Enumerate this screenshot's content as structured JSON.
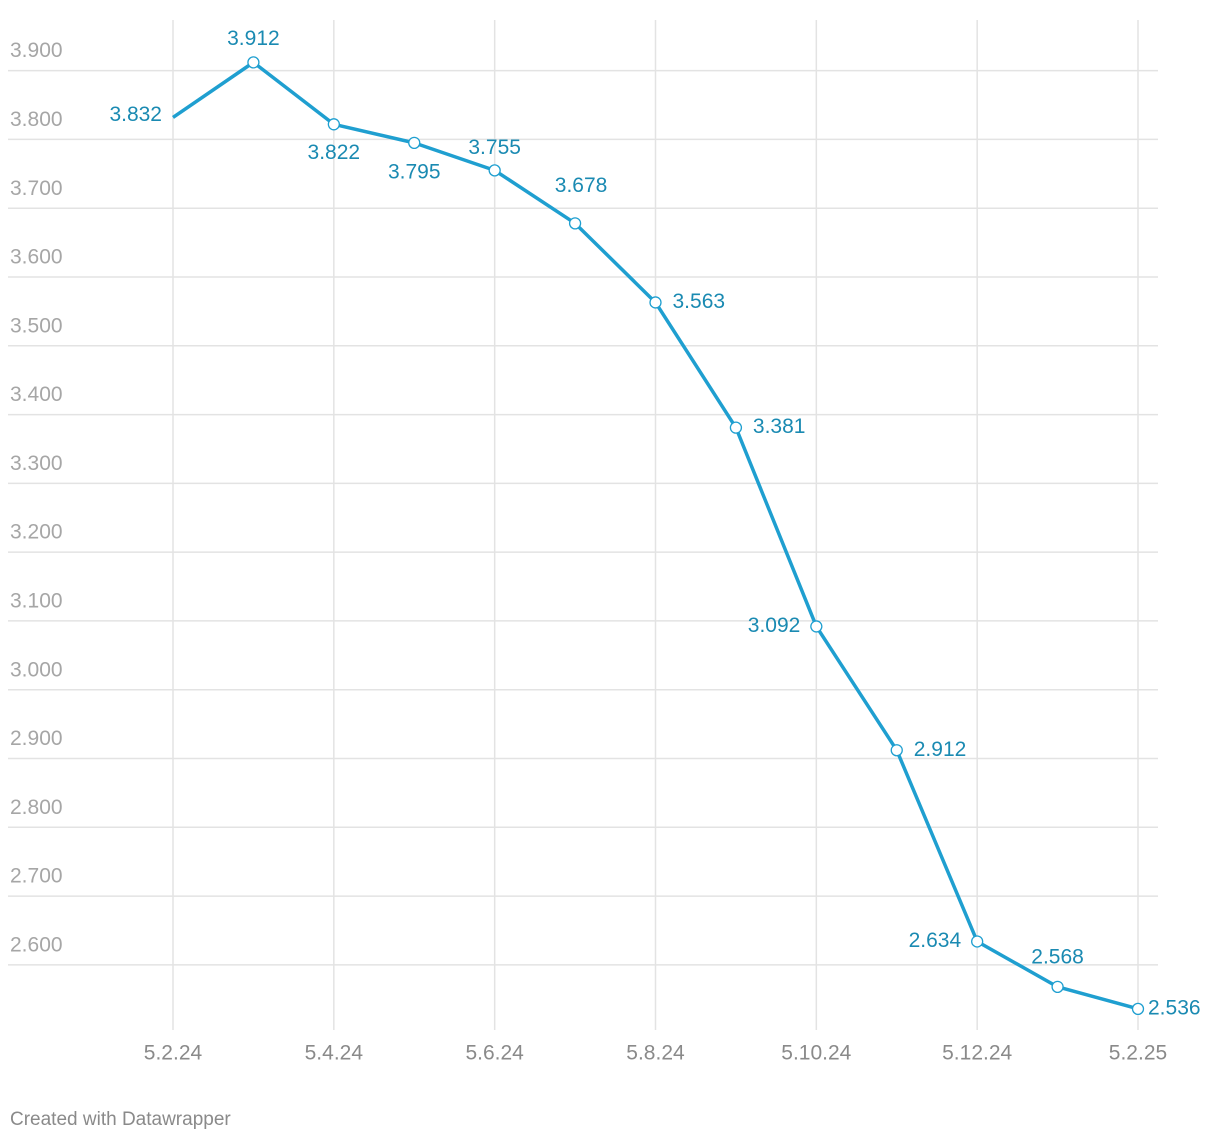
{
  "chart_data": {
    "type": "line",
    "categories": [
      "5.2.24",
      null,
      "5.4.24",
      null,
      "5.6.24",
      null,
      "5.8.24",
      null,
      "5.10.24",
      null,
      "5.12.24",
      null,
      "5.2.25"
    ],
    "series": [
      {
        "color": "#1f9fd0",
        "values": [
          3832,
          3912,
          3822,
          3795,
          3755,
          3678,
          3563,
          3381,
          3092,
          2912,
          2634,
          2568,
          2536
        ],
        "value_labels": [
          "3.832",
          "3.912",
          "3.822",
          "3.795",
          "3.755",
          "3.678",
          "3.563",
          "3.381",
          "3.092",
          "2.912",
          "2.634",
          "2.568",
          "2.536"
        ]
      }
    ],
    "ylim": [
      2530,
      3930
    ],
    "yticks": [
      {
        "value": 2600,
        "label": "2.600"
      },
      {
        "value": 2700,
        "label": "2.700"
      },
      {
        "value": 2800,
        "label": "2.800"
      },
      {
        "value": 2900,
        "label": "2.900"
      },
      {
        "value": 3000,
        "label": "3.000"
      },
      {
        "value": 3100,
        "label": "3.100"
      },
      {
        "value": 3200,
        "label": "3.200"
      },
      {
        "value": 3300,
        "label": "3.300"
      },
      {
        "value": 3400,
        "label": "3.400"
      },
      {
        "value": 3500,
        "label": "3.500"
      },
      {
        "value": 3600,
        "label": "3.600"
      },
      {
        "value": 3700,
        "label": "3.700"
      },
      {
        "value": 3800,
        "label": "3.800"
      },
      {
        "value": 3900,
        "label": "3.900"
      }
    ],
    "grid": true,
    "footer": "Created with Datawrapper"
  }
}
